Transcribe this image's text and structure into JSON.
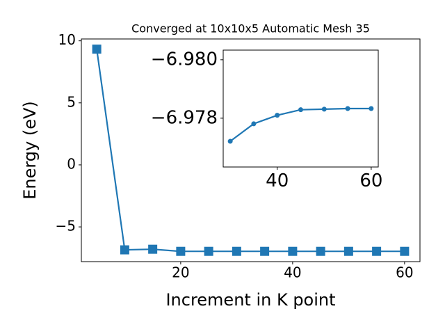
{
  "chart_data": [
    {
      "type": "line",
      "title": "Converged at 10x10x5 Automatic Mesh 35",
      "xlabel": "Increment in K point",
      "ylabel": "Energy (eV)",
      "x": [
        5,
        10,
        15,
        20,
        25,
        30,
        35,
        40,
        45,
        50,
        55,
        60
      ],
      "series": [
        {
          "color": "#1f77b4",
          "marker": "square",
          "values": [
            9.33,
            -6.85,
            -6.8,
            -6.97,
            -6.97,
            -6.97,
            -6.97,
            -6.97,
            -6.97,
            -6.97,
            -6.97,
            -6.97
          ]
        }
      ],
      "xlim": [
        2.25,
        62.75
      ],
      "ylim": [
        -7.8,
        10.15
      ],
      "xticks": [
        20,
        40,
        60
      ],
      "yticks": [
        10,
        5,
        0,
        {
          "value": -5,
          "label": "−5"
        }
      ]
    },
    {
      "type": "line",
      "x": [
        30,
        35,
        40,
        45,
        50,
        55,
        60
      ],
      "series": [
        {
          "color": "#1f77b4",
          "marker": "circle",
          "values": [
            -6.97721,
            -6.97781,
            -6.9781,
            -6.97829,
            -6.97831,
            -6.97833,
            -6.97833
          ]
        }
      ],
      "xlim": [
        28.5,
        61.5
      ],
      "ylim": [
        -6.97633,
        -6.98033
      ],
      "xticks": [
        40,
        60
      ],
      "yticks": [
        {
          "value": -6.98,
          "label": "−6.980"
        },
        {
          "value": -6.978,
          "label": "−6.978"
        }
      ]
    }
  ]
}
